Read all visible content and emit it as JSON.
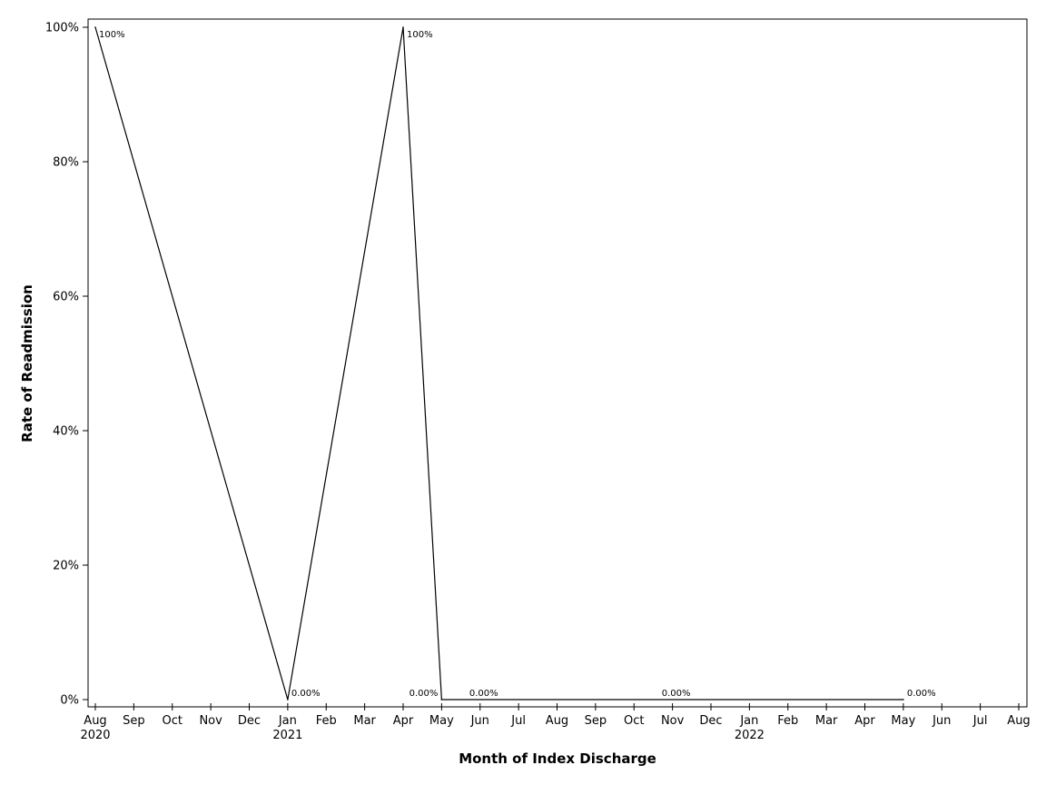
{
  "chart_data": {
    "type": "line",
    "title": "",
    "xlabel": "Month of Index Discharge",
    "ylabel": "Rate of Readmission",
    "ylim": [
      0,
      100
    ],
    "xlim": [
      "2020-08",
      "2022-08"
    ],
    "grid": false,
    "legend": "none",
    "line_color": "#000000",
    "y_ticks": [
      {
        "value": 0,
        "label": "0%"
      },
      {
        "value": 20,
        "label": "20%"
      },
      {
        "value": 40,
        "label": "40%"
      },
      {
        "value": 60,
        "label": "60%"
      },
      {
        "value": 80,
        "label": "80%"
      },
      {
        "value": 100,
        "label": "100%"
      }
    ],
    "x_ticks": [
      {
        "month": "2020-08",
        "label": "Aug",
        "year": "2020"
      },
      {
        "month": "2020-09",
        "label": "Sep"
      },
      {
        "month": "2020-10",
        "label": "Oct"
      },
      {
        "month": "2020-11",
        "label": "Nov"
      },
      {
        "month": "2020-12",
        "label": "Dec"
      },
      {
        "month": "2021-01",
        "label": "Jan",
        "year": "2021"
      },
      {
        "month": "2021-02",
        "label": "Feb"
      },
      {
        "month": "2021-03",
        "label": "Mar"
      },
      {
        "month": "2021-04",
        "label": "Apr"
      },
      {
        "month": "2021-05",
        "label": "May"
      },
      {
        "month": "2021-06",
        "label": "Jun"
      },
      {
        "month": "2021-07",
        "label": "Jul"
      },
      {
        "month": "2021-08",
        "label": "Aug"
      },
      {
        "month": "2021-09",
        "label": "Sep"
      },
      {
        "month": "2021-10",
        "label": "Oct"
      },
      {
        "month": "2021-11",
        "label": "Nov"
      },
      {
        "month": "2021-12",
        "label": "Dec"
      },
      {
        "month": "2022-01",
        "label": "Jan",
        "year": "2022"
      },
      {
        "month": "2022-02",
        "label": "Feb"
      },
      {
        "month": "2022-03",
        "label": "Mar"
      },
      {
        "month": "2022-04",
        "label": "Apr"
      },
      {
        "month": "2022-05",
        "label": "May"
      },
      {
        "month": "2022-06",
        "label": "Jun"
      },
      {
        "month": "2022-07",
        "label": "Jul"
      },
      {
        "month": "2022-08",
        "label": "Aug"
      }
    ],
    "points": [
      {
        "x": "2020-08",
        "y": 100
      },
      {
        "x": "2021-01",
        "y": 0
      },
      {
        "x": "2021-04",
        "y": 100
      },
      {
        "x": "2021-05",
        "y": 0
      },
      {
        "x": "2022-05",
        "y": 0
      }
    ],
    "data_labels": [
      {
        "x": "2020-08",
        "y": 100,
        "text": "100%",
        "side": "right"
      },
      {
        "x": "2021-01",
        "y": 0,
        "text": "0.00%",
        "side": "right"
      },
      {
        "x": "2021-04",
        "y": 100,
        "text": "100%",
        "side": "right"
      },
      {
        "x": "2021-05",
        "y": 0,
        "text": "0.00%",
        "side": "left"
      },
      {
        "x": "2021-06",
        "y": 0,
        "text": "0.00%",
        "side": "center"
      },
      {
        "x": "2021-11",
        "y": 0,
        "text": "0.00%",
        "side": "center"
      },
      {
        "x": "2022-05",
        "y": 0,
        "text": "0.00%",
        "side": "right"
      }
    ]
  }
}
